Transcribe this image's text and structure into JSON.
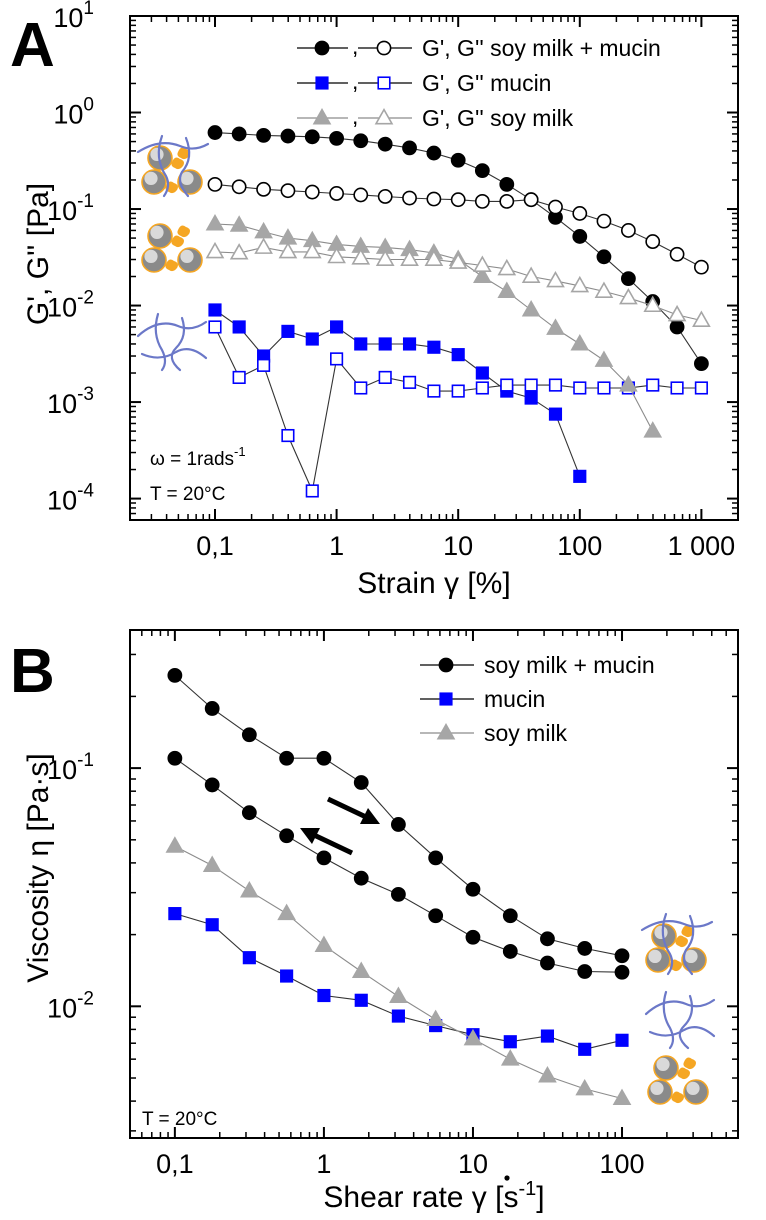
{
  "chart_data": [
    {
      "panel": "A",
      "type": "line",
      "xscale": "log",
      "yscale": "log",
      "xlabel_main": "Strain ",
      "xlabel_symbol": "γ",
      "xlabel_unit": " [%]",
      "ylabel": "G', G'' [Pa]",
      "xlim": [
        0.02,
        2000
      ],
      "ylim": [
        6e-05,
        10
      ],
      "xticks": [
        {
          "value": 0.1,
          "label": "0,1"
        },
        {
          "value": 1,
          "label": "1"
        },
        {
          "value": 10,
          "label": "10"
        },
        {
          "value": 100,
          "label": "100"
        },
        {
          "value": 1000,
          "label": "1 000"
        }
      ],
      "yticks": [
        {
          "value": 0.0001,
          "base": "10",
          "exp": "-4"
        },
        {
          "value": 0.001,
          "base": "10",
          "exp": "-3"
        },
        {
          "value": 0.01,
          "base": "10",
          "exp": "-2"
        },
        {
          "value": 0.1,
          "base": "10",
          "exp": "-1"
        },
        {
          "value": 1,
          "base": "10",
          "exp": "0"
        },
        {
          "value": 10,
          "base": "10",
          "exp": "1"
        }
      ],
      "annotations": {
        "omega_main": "ω = 1rads",
        "omega_exp": "-1",
        "temperature": "T = 20°C"
      },
      "legend": [
        {
          "sep": ",",
          "label": "G', G'' soy milk + mucin"
        },
        {
          "sep": ",",
          "label": "G', G'' mucin"
        },
        {
          "sep": ",",
          "label": "G', G'' soy milk"
        }
      ],
      "series": [
        {
          "name": "G' soy milk + mucin",
          "color": "#000000",
          "marker": "circle",
          "filled": true,
          "x": [
            0.1,
            0.158,
            0.251,
            0.398,
            0.631,
            1,
            1.58,
            2.51,
            3.98,
            6.31,
            10,
            15.8,
            25.1,
            39.8,
            63.1,
            100,
            158,
            251,
            398,
            631,
            1000
          ],
          "y": [
            0.62,
            0.6,
            0.58,
            0.57,
            0.56,
            0.54,
            0.51,
            0.47,
            0.43,
            0.38,
            0.32,
            0.25,
            0.18,
            0.125,
            0.082,
            0.052,
            0.032,
            0.019,
            0.011,
            0.006,
            0.0025
          ]
        },
        {
          "name": "G'' soy milk + mucin",
          "color": "#000000",
          "marker": "circle",
          "filled": false,
          "x": [
            0.1,
            0.158,
            0.251,
            0.398,
            0.631,
            1,
            1.58,
            2.51,
            3.98,
            6.31,
            10,
            15.8,
            25.1,
            39.8,
            63.1,
            100,
            158,
            251,
            398,
            631,
            1000
          ],
          "y": [
            0.18,
            0.17,
            0.16,
            0.155,
            0.15,
            0.145,
            0.14,
            0.135,
            0.13,
            0.127,
            0.125,
            0.12,
            0.12,
            0.125,
            0.105,
            0.09,
            0.075,
            0.06,
            0.046,
            0.034,
            0.025
          ]
        },
        {
          "name": "G' mucin",
          "color": "#0000ff",
          "marker": "square",
          "filled": true,
          "x": [
            0.1,
            0.158,
            0.251,
            0.398,
            0.631,
            1,
            1.58,
            2.51,
            3.98,
            6.31,
            10,
            15.8,
            25.1,
            39.8,
            63.1,
            100
          ],
          "y": [
            0.009,
            0.006,
            0.003,
            0.0054,
            0.0045,
            0.006,
            0.004,
            0.004,
            0.004,
            0.0037,
            0.0031,
            0.002,
            0.0013,
            0.0011,
            0.00075,
            0.00017
          ]
        },
        {
          "name": "G'' mucin",
          "color": "#0000ff",
          "marker": "square",
          "filled": false,
          "x": [
            0.1,
            0.158,
            0.251,
            0.398,
            0.631,
            1,
            1.58,
            2.51,
            3.98,
            6.31,
            10,
            15.8,
            25.1,
            39.8,
            63.1,
            100,
            158,
            251,
            398,
            631,
            1000
          ],
          "y": [
            0.006,
            0.0018,
            0.0024,
            0.00045,
            0.00012,
            0.0028,
            0.0014,
            0.0018,
            0.0016,
            0.0013,
            0.0013,
            0.0014,
            0.0015,
            0.0015,
            0.0015,
            0.0014,
            0.0014,
            0.0014,
            0.0015,
            0.0014,
            0.0014
          ]
        },
        {
          "name": "G' soy milk",
          "color": "#a6a6a6",
          "marker": "triangle",
          "filled": true,
          "x": [
            0.1,
            0.158,
            0.251,
            0.398,
            0.631,
            1,
            1.58,
            2.51,
            3.98,
            6.31,
            10,
            15.8,
            25.1,
            39.8,
            63.1,
            100,
            158,
            251,
            398
          ],
          "y": [
            0.07,
            0.068,
            0.058,
            0.05,
            0.047,
            0.043,
            0.041,
            0.04,
            0.038,
            0.035,
            0.03,
            0.02,
            0.014,
            0.009,
            0.0058,
            0.004,
            0.0027,
            0.0015,
            0.0005
          ]
        },
        {
          "name": "G'' soy milk",
          "color": "#a6a6a6",
          "marker": "triangle",
          "filled": false,
          "x": [
            0.1,
            0.158,
            0.251,
            0.398,
            0.631,
            1,
            1.58,
            2.51,
            3.98,
            6.31,
            10,
            15.8,
            25.1,
            39.8,
            63.1,
            100,
            158,
            251,
            398,
            631,
            1000
          ],
          "y": [
            0.036,
            0.035,
            0.04,
            0.036,
            0.036,
            0.032,
            0.031,
            0.03,
            0.03,
            0.03,
            0.028,
            0.026,
            0.024,
            0.02,
            0.018,
            0.016,
            0.014,
            0.012,
            0.01,
            0.008,
            0.007
          ]
        }
      ]
    },
    {
      "panel": "B",
      "type": "line",
      "xscale": "log",
      "yscale": "log",
      "xlabel_main": "Shear rate ",
      "xlabel_symbol": "γ",
      "xlabel_unit": " [s",
      "xlabel_exp": "-1",
      "xlabel_close": "]",
      "ylabel": "Viscosity η [Pa·s]",
      "xlim": [
        0.05,
        600
      ],
      "ylim": [
        0.0028,
        0.38
      ],
      "xticks": [
        {
          "value": 0.1,
          "label": "0,1"
        },
        {
          "value": 1,
          "label": "1"
        },
        {
          "value": 10,
          "label": "10"
        },
        {
          "value": 100,
          "label": "100"
        }
      ],
      "yticks": [
        {
          "value": 0.01,
          "base": "10",
          "exp": "-2"
        },
        {
          "value": 0.1,
          "base": "10",
          "exp": "-1"
        }
      ],
      "annotations": {
        "temperature": "T = 20°C"
      },
      "legend": [
        {
          "label": "soy milk + mucin"
        },
        {
          "label": "mucin"
        },
        {
          "label": "soy milk"
        }
      ],
      "series": [
        {
          "name": "soy milk + mucin",
          "color": "#000000",
          "marker": "circle",
          "filled": true,
          "x": [
            0.1,
            0.178,
            0.316,
            0.562,
            1,
            1.78,
            3.16,
            5.62,
            10,
            17.8,
            31.6,
            56.2,
            100
          ],
          "y": [
            0.245,
            0.178,
            0.138,
            0.11,
            0.11,
            0.087,
            0.058,
            0.042,
            0.031,
            0.024,
            0.0192,
            0.0175,
            0.0163
          ]
        },
        {
          "name": "soy milk + mucin",
          "color": "#000000",
          "marker": "circle",
          "filled": true,
          "x": [
            0.1,
            0.178,
            0.316,
            0.562,
            1,
            1.78,
            3.16,
            5.62,
            10,
            17.8,
            31.6,
            56.2,
            100
          ],
          "y": [
            0.11,
            0.085,
            0.065,
            0.052,
            0.042,
            0.0345,
            0.0295,
            0.024,
            0.0195,
            0.017,
            0.0152,
            0.014,
            0.0139
          ]
        },
        {
          "name": "mucin",
          "color": "#0000ff",
          "marker": "square",
          "filled": true,
          "x": [
            0.1,
            0.178,
            0.316,
            0.562,
            1,
            1.78,
            3.16,
            5.62,
            10,
            17.8,
            31.6,
            56.2,
            100
          ],
          "y": [
            0.0245,
            0.022,
            0.016,
            0.0134,
            0.0111,
            0.0106,
            0.0091,
            0.0083,
            0.0076,
            0.0071,
            0.0075,
            0.0066,
            0.0072
          ]
        },
        {
          "name": "soy milk",
          "color": "#a6a6a6",
          "marker": "triangle",
          "filled": true,
          "x": [
            0.1,
            0.178,
            0.316,
            0.562,
            1,
            1.78,
            3.16,
            5.62,
            10,
            17.8,
            31.6,
            56.2,
            100
          ],
          "y": [
            0.047,
            0.039,
            0.0305,
            0.0245,
            0.018,
            0.014,
            0.011,
            0.0088,
            0.0073,
            0.006,
            0.0051,
            0.0045,
            0.0041
          ]
        }
      ]
    }
  ]
}
